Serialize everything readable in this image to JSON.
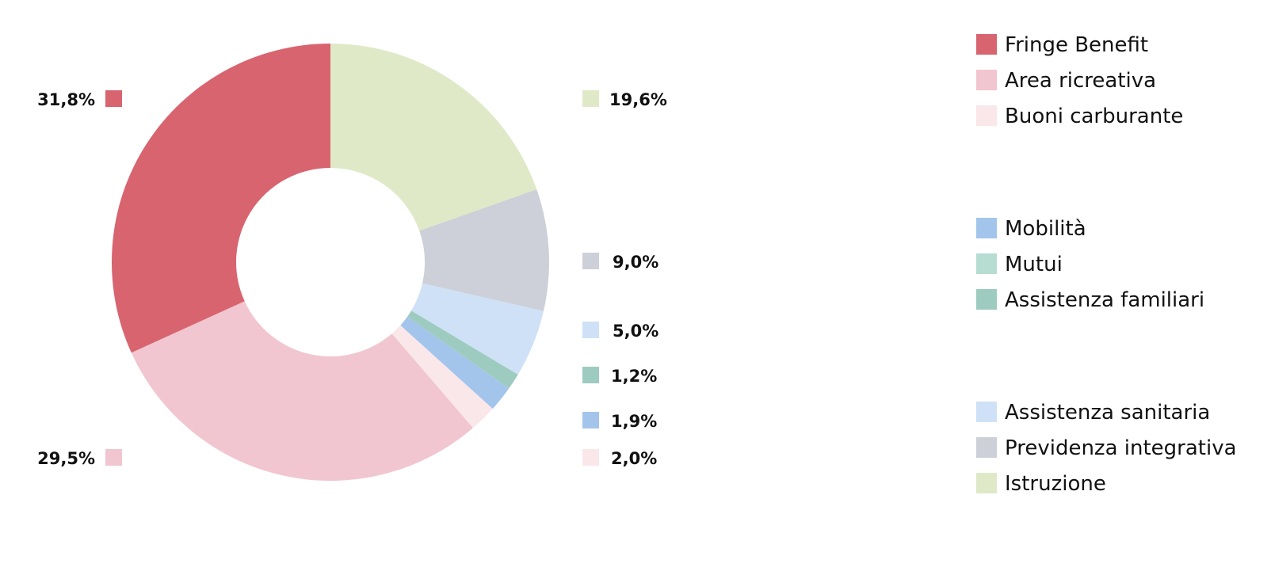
{
  "chart_data": {
    "type": "pie",
    "variant": "donut",
    "legend_placement": "right",
    "slices": [
      {
        "label": "Istruzione",
        "value": 19.6,
        "display": "19,6%",
        "color": "#dfe9c7"
      },
      {
        "label": "Previdenza integrativa",
        "value": 9.0,
        "display": "9,0%",
        "color": "#cdd0d8"
      },
      {
        "label": "Assistenza sanitaria",
        "value": 5.0,
        "display": "5,0%",
        "color": "#cfe1f6"
      },
      {
        "label": "Assistenza familiari",
        "value": 1.2,
        "display": "1,2%",
        "color": "#9ecbbf"
      },
      {
        "label": "Mobilità",
        "value": 1.9,
        "display": "1,9%",
        "color": "#a3c5ec"
      },
      {
        "label": "Buoni carburante",
        "value": 2.0,
        "display": "2,0%",
        "color": "#fae7ea"
      },
      {
        "label": "Area ricreativa",
        "value": 29.5,
        "display": "29,5%",
        "color": "#f1c6d0"
      },
      {
        "label": "Fringe Benefit",
        "value": 31.8,
        "display": "31,8%",
        "color": "#d8646f"
      }
    ],
    "legend_groups": [
      [
        {
          "label": "Fringe Benefit",
          "color": "#d8646f"
        },
        {
          "label": "Area ricreativa",
          "color": "#f1c6d0"
        },
        {
          "label": "Buoni carburante",
          "color": "#fae7ea"
        }
      ],
      [
        {
          "label": "Mobilità",
          "color": "#a3c5ec"
        },
        {
          "label": "Mutui",
          "color": "#b7dcd2"
        },
        {
          "label": "Assistenza familiari",
          "color": "#9ecbbf"
        }
      ],
      [
        {
          "label": "Assistenza sanitaria",
          "color": "#cfe1f6"
        },
        {
          "label": "Previdenza integrativa",
          "color": "#cdd0d8"
        },
        {
          "label": "Istruzione",
          "color": "#dfe9c7"
        }
      ]
    ]
  }
}
